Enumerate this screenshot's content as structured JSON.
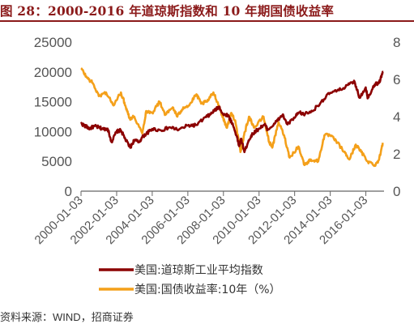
{
  "figure": {
    "title": "图 28：2000-2016 年道琼斯指数和 10 年期国债收益率",
    "source_prefix": "资料来源：",
    "source_name": "WIND",
    "source_suffix": "，招商证券"
  },
  "chart_data": {
    "type": "line",
    "title": "图 28：2000-2016 年道琼斯指数和 10 年期国债收益率",
    "x_ticks": [
      "2000-01-03",
      "2002-01-03",
      "2004-01-03",
      "2006-01-03",
      "2008-01-03",
      "2010-01-03",
      "2012-01-03",
      "2014-01-03",
      "2016-01-03"
    ],
    "xlim": [
      "2000-01-03",
      "2017-01-10"
    ],
    "y_left": {
      "ylim": [
        0,
        25000
      ],
      "ticks": [
        0,
        5000,
        10000,
        15000,
        20000,
        25000
      ]
    },
    "y_right": {
      "ylim": [
        0,
        8
      ],
      "ticks": [
        0,
        2,
        4,
        6,
        8
      ]
    },
    "grid": false,
    "legend_position": "bottom",
    "series": [
      {
        "name": "美国:道琼斯工业平均指数",
        "axis": "left",
        "color": "#8b0000",
        "x": [
          "2000-01-03",
          "2000-04-01",
          "2000-07-01",
          "2000-10-01",
          "2001-01-01",
          "2001-04-01",
          "2001-07-01",
          "2001-09-21",
          "2002-01-01",
          "2002-04-01",
          "2002-07-01",
          "2002-10-09",
          "2003-01-01",
          "2003-04-01",
          "2003-07-01",
          "2003-10-01",
          "2004-01-01",
          "2004-07-01",
          "2005-01-01",
          "2005-07-01",
          "2006-01-01",
          "2006-07-01",
          "2007-01-01",
          "2007-04-01",
          "2007-07-01",
          "2007-10-09",
          "2008-01-01",
          "2008-04-01",
          "2008-07-01",
          "2008-10-01",
          "2008-11-20",
          "2009-01-01",
          "2009-03-09",
          "2009-06-01",
          "2009-09-01",
          "2010-01-01",
          "2010-04-26",
          "2010-07-01",
          "2011-01-01",
          "2011-04-29",
          "2011-08-10",
          "2012-01-01",
          "2012-04-01",
          "2012-07-01",
          "2013-01-01",
          "2013-07-01",
          "2014-01-01",
          "2014-07-01",
          "2015-01-01",
          "2015-05-19",
          "2015-08-25",
          "2016-01-01",
          "2016-02-11",
          "2016-07-01",
          "2016-10-01",
          "2016-12-20"
        ],
        "values": [
          11357,
          10900,
          10500,
          10900,
          10700,
          10400,
          10500,
          8236,
          10000,
          10200,
          8700,
          7286,
          8600,
          8200,
          9200,
          9800,
          10450,
          10200,
          10700,
          10300,
          11000,
          11100,
          12400,
          12800,
          13500,
          14164,
          12800,
          12800,
          11400,
          9300,
          7552,
          8800,
          6547,
          8500,
          9700,
          10500,
          11200,
          10300,
          11700,
          12800,
          11200,
          12300,
          13200,
          12900,
          13400,
          15000,
          16500,
          16900,
          17800,
          18312,
          15666,
          17400,
          15660,
          17900,
          18200,
          19974
        ]
      },
      {
        "name": "美国:国债收益率:10年（%）",
        "axis": "right",
        "color": "#f4a01a",
        "x": [
          "2000-01-03",
          "2000-05-01",
          "2000-09-01",
          "2001-01-01",
          "2001-06-01",
          "2001-11-01",
          "2002-04-01",
          "2002-07-01",
          "2002-10-01",
          "2003-01-01",
          "2003-06-13",
          "2003-09-01",
          "2004-01-01",
          "2004-06-01",
          "2004-10-01",
          "2005-03-01",
          "2005-06-01",
          "2005-10-01",
          "2006-02-01",
          "2006-06-28",
          "2006-10-01",
          "2007-02-01",
          "2007-06-12",
          "2007-10-01",
          "2008-01-01",
          "2008-03-17",
          "2008-06-13",
          "2008-09-01",
          "2008-12-18",
          "2009-03-01",
          "2009-06-10",
          "2009-10-01",
          "2010-04-05",
          "2010-08-01",
          "2010-10-08",
          "2011-02-08",
          "2011-06-01",
          "2011-09-22",
          "2012-03-20",
          "2012-07-24",
          "2012-12-01",
          "2013-05-01",
          "2013-09-05",
          "2014-01-01",
          "2014-06-01",
          "2014-10-15",
          "2015-01-30",
          "2015-06-10",
          "2015-10-01",
          "2016-02-11",
          "2016-07-08",
          "2016-10-01",
          "2016-12-15"
        ],
        "values": [
          6.6,
          6.1,
          5.8,
          5.1,
          5.3,
          4.6,
          5.3,
          4.6,
          3.9,
          4.0,
          3.1,
          4.3,
          4.2,
          4.8,
          4.1,
          4.5,
          4.0,
          4.5,
          4.6,
          5.2,
          4.7,
          4.8,
          5.3,
          4.6,
          3.9,
          3.4,
          4.2,
          3.8,
          2.1,
          3.0,
          4.0,
          3.4,
          4.0,
          2.6,
          2.4,
          3.7,
          3.0,
          1.8,
          2.4,
          1.4,
          1.7,
          1.6,
          3.0,
          3.0,
          2.6,
          2.1,
          1.7,
          2.5,
          2.1,
          1.6,
          1.4,
          1.7,
          2.6
        ]
      }
    ]
  }
}
